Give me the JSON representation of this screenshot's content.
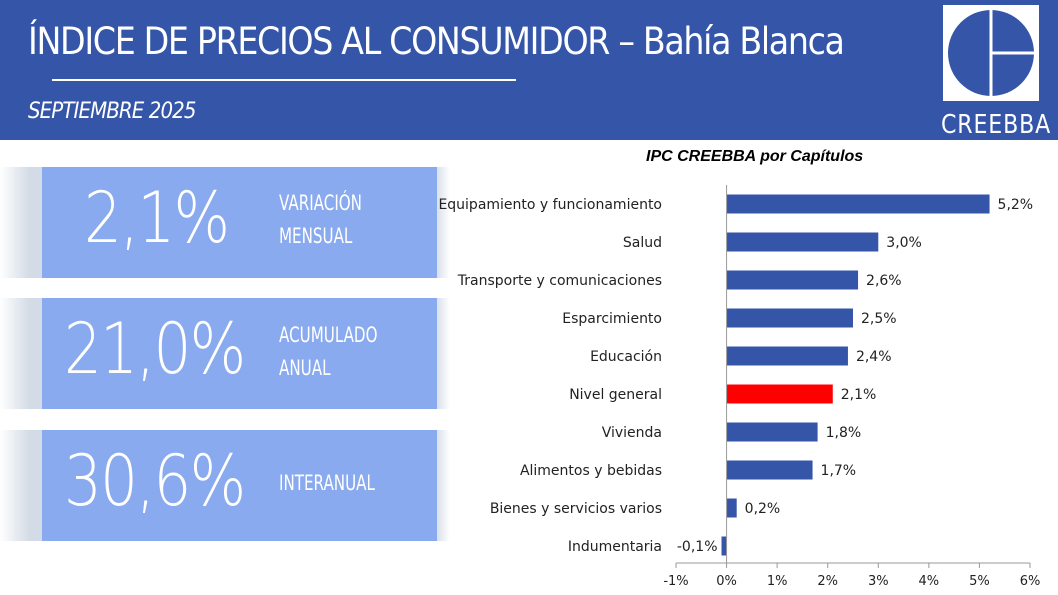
{
  "header": {
    "title": "ÍNDICE DE PRECIOS AL CONSUMIDOR – Bahía Blanca",
    "subtitle": "SEPTIEMBRE 2025",
    "logo_text": "CREEBBA"
  },
  "cards": [
    {
      "value": "2,1%",
      "label_1": "VARIACIÓN",
      "label_2": "MENSUAL"
    },
    {
      "value": "21,0%",
      "label_1": "ACUMULADO",
      "label_2": "ANUAL"
    },
    {
      "value": "30,6%",
      "label_1": "INTERANUAL",
      "label_2": ""
    }
  ],
  "colors": {
    "header": "#3455a8",
    "card": "#89aaee",
    "bar": "#3455a8",
    "highlight": "#ff0000"
  },
  "chart_data": {
    "type": "bar",
    "orientation": "horizontal",
    "title": "IPC CREEBBA por Capítulos",
    "categories": [
      "Equipamiento y funcionamiento",
      "Salud",
      "Transporte y comunicaciones",
      "Esparcimiento",
      "Educación",
      "Nivel general",
      "Vivienda",
      "Alimentos y bebidas",
      "Bienes y servicios varios",
      "Indumentaria"
    ],
    "values": [
      5.2,
      3.0,
      2.6,
      2.5,
      2.4,
      2.1,
      1.8,
      1.7,
      0.2,
      -0.1
    ],
    "value_labels": [
      "5,2%",
      "3,0%",
      "2,6%",
      "2,5%",
      "2,4%",
      "2,1%",
      "1,8%",
      "1,7%",
      "0,2%",
      "-0,1%"
    ],
    "highlight": "Nivel general",
    "xlim": [
      -1,
      6
    ],
    "ticks": [
      -1,
      0,
      1,
      2,
      3,
      4,
      5,
      6
    ],
    "tick_labels": [
      "-1%",
      "0%",
      "1%",
      "2%",
      "3%",
      "4%",
      "5%",
      "6%"
    ],
    "grid": false
  }
}
